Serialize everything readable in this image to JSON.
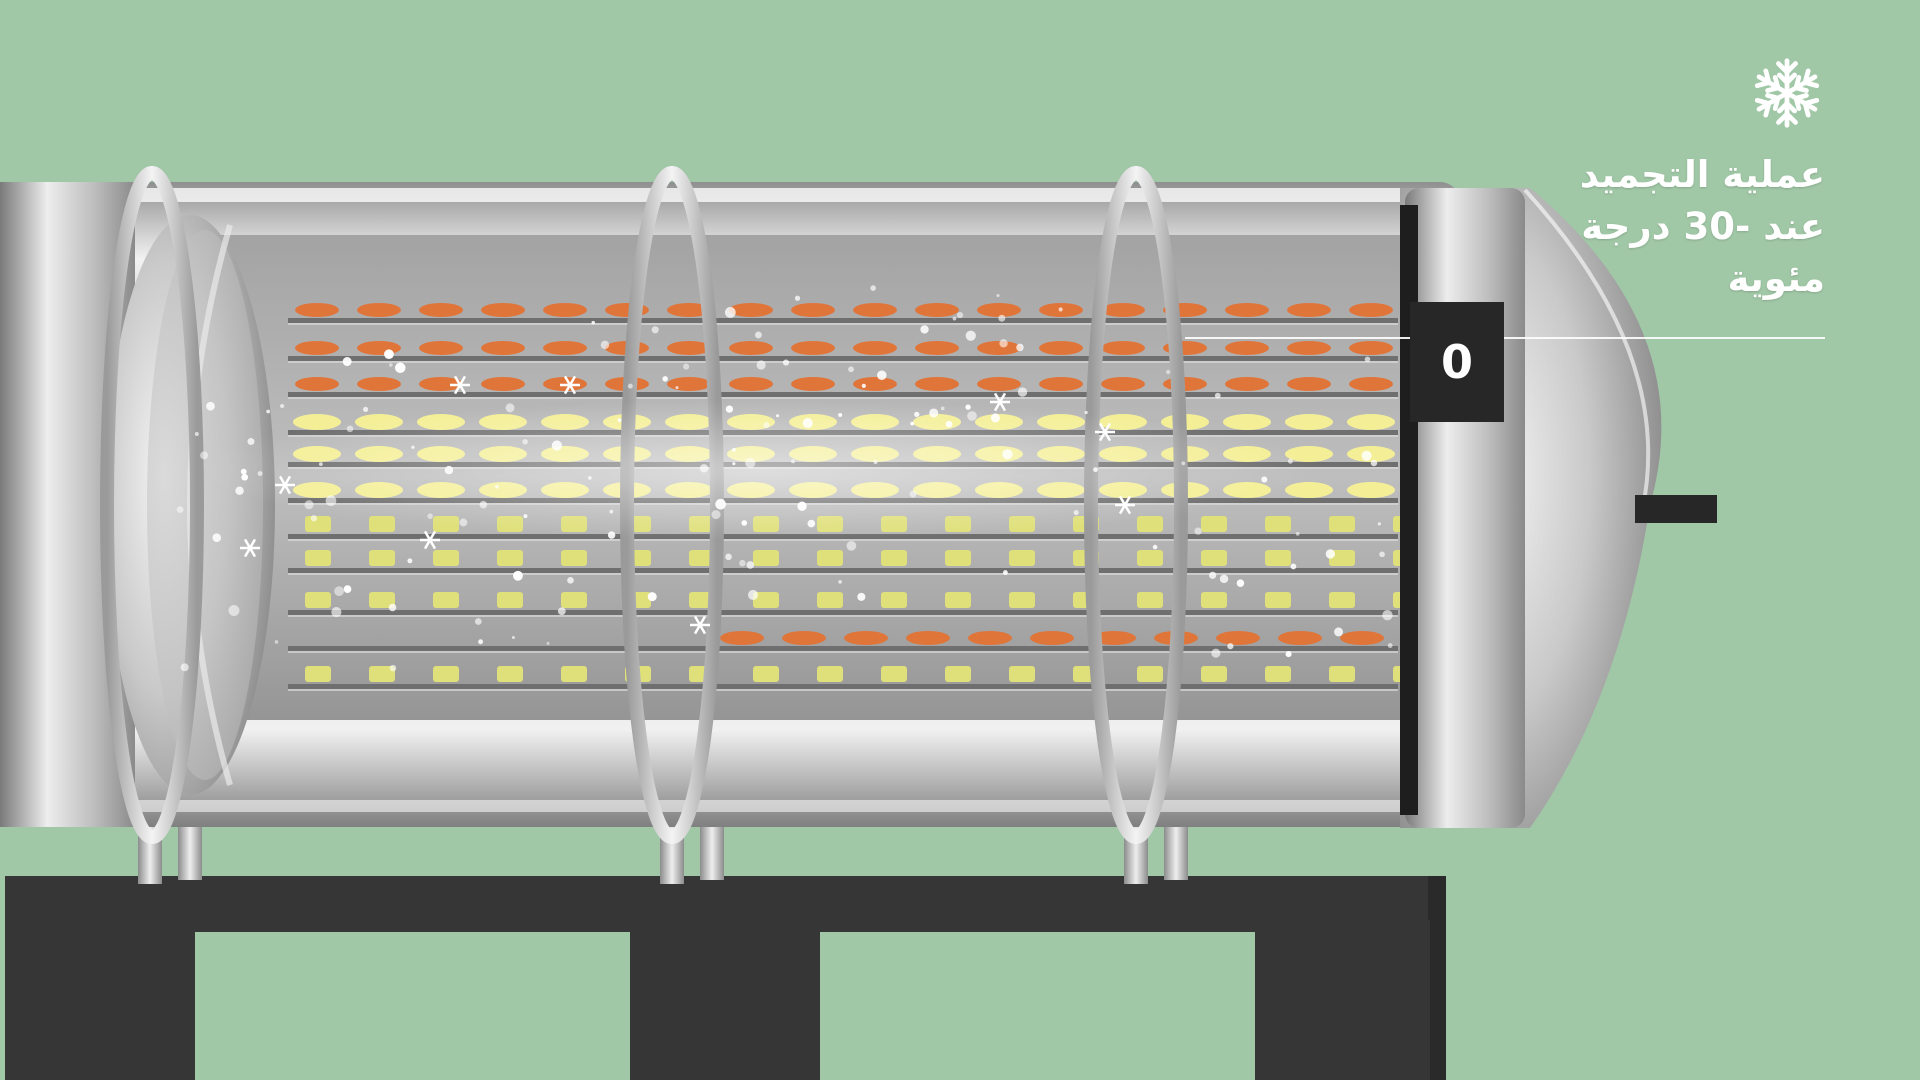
{
  "caption": {
    "icon": "snowflake-icon",
    "text": "عملية التجميد\nعند -30 درجة\nمئوية"
  },
  "counter": {
    "value": "0"
  },
  "colors": {
    "background": "#a0c7a6",
    "stand": "#363636",
    "carrot": "#e0753a",
    "yellow_slice": "#f4ef96",
    "green_cube": "#dfe07a",
    "steel": "#cfcfcf",
    "counter_box": "#272727"
  }
}
